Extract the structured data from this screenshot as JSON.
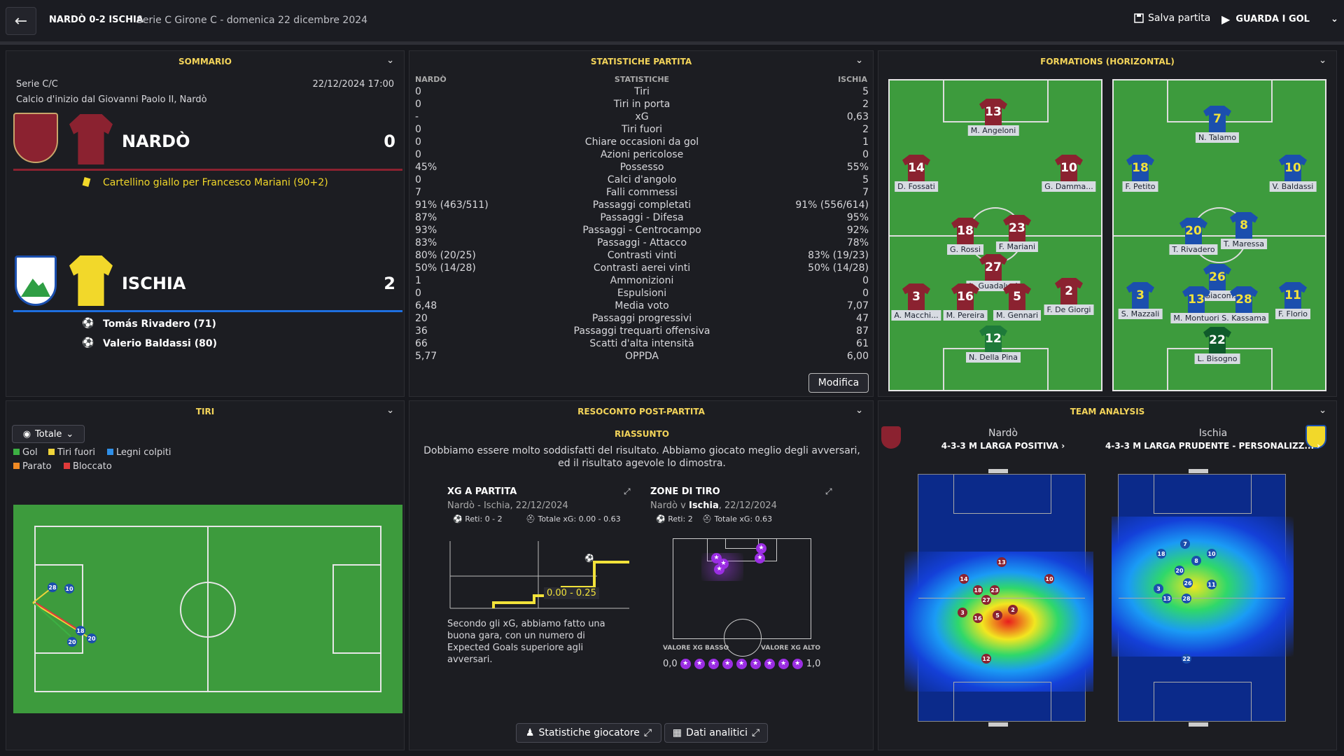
{
  "topbar": {
    "back_icon": "arrow-left-icon",
    "score_title": "NARDÒ 0-2 ISCHIA",
    "subtitle": "Serie C Girone C - domenica 22 dicembre 2024",
    "save_label": "Salva partita",
    "goals_label": "GUARDA I GOL"
  },
  "summary": {
    "header": "SOMMARIO",
    "competition": "Serie C/C",
    "datetime": "22/12/2024 17:00",
    "kickoff": "Calcio d'inizio dal Giovanni Paolo II, Nardò",
    "home": {
      "name": "NARDÒ",
      "score": "0",
      "color": "#8b2230",
      "events": [
        {
          "icon": "yellow-card-icon",
          "text": "Cartellino giallo per Francesco Mariani (90+2)"
        }
      ]
    },
    "away": {
      "name": "ISCHIA",
      "score": "2",
      "color": "#1b4fae",
      "events": [
        {
          "icon": "ball-icon",
          "text": "Tomás Rivadero (71)"
        },
        {
          "icon": "ball-icon",
          "text": "Valerio Baldassi (80)"
        }
      ]
    }
  },
  "stats": {
    "header": "STATISTICHE PARTITA",
    "col_home": "NARDÒ",
    "col_mid": "STATISTICHE",
    "col_away": "ISCHIA",
    "rows": [
      {
        "h": "0",
        "l": "Tiri",
        "a": "5"
      },
      {
        "h": "0",
        "l": "Tiri in porta",
        "a": "2"
      },
      {
        "h": "-",
        "l": "xG",
        "a": "0,63"
      },
      {
        "h": "0",
        "l": "Tiri fuori",
        "a": "2"
      },
      {
        "h": "0",
        "l": "Chiare occasioni da gol",
        "a": "1"
      },
      {
        "h": "0",
        "l": "Azioni pericolose",
        "a": "0"
      },
      {
        "h": "45%",
        "l": "Possesso",
        "a": "55%"
      },
      {
        "h": "0",
        "l": "Calci d'angolo",
        "a": "5"
      },
      {
        "h": "7",
        "l": "Falli commessi",
        "a": "7"
      },
      {
        "h": "91% (463/511)",
        "l": "Passaggi completati",
        "a": "91% (556/614)"
      },
      {
        "h": "87%",
        "l": "Passaggi - Difesa",
        "a": "95%"
      },
      {
        "h": "93%",
        "l": "Passaggi - Centrocampo",
        "a": "92%"
      },
      {
        "h": "83%",
        "l": "Passaggi - Attacco",
        "a": "78%"
      },
      {
        "h": "80% (20/25)",
        "l": "Contrasti vinti",
        "a": "83% (19/23)"
      },
      {
        "h": "50% (14/28)",
        "l": "Contrasti aerei vinti",
        "a": "50% (14/28)"
      },
      {
        "h": "1",
        "l": "Ammonizioni",
        "a": "0"
      },
      {
        "h": "0",
        "l": "Espulsioni",
        "a": "0"
      },
      {
        "h": "6,48",
        "l": "Media voto",
        "a": "7,07"
      },
      {
        "h": "20",
        "l": "Passaggi progressivi",
        "a": "47"
      },
      {
        "h": "36",
        "l": "Passaggi trequarti offensiva",
        "a": "87"
      },
      {
        "h": "66",
        "l": "Scatti d'alta intensità",
        "a": "61"
      },
      {
        "h": "5,77",
        "l": "OPPDA",
        "a": "6,00"
      }
    ],
    "edit_label": "Modifica"
  },
  "formations": {
    "header": "FORMATIONS (HORIZONTAL)",
    "home": [
      {
        "n": "13",
        "name": "M. Angeloni"
      },
      {
        "n": "14",
        "name": "D. Fossati"
      },
      {
        "n": "10",
        "name": "G. Damma..."
      },
      {
        "n": "18",
        "name": "G. Rossi"
      },
      {
        "n": "23",
        "name": "F. Mariani"
      },
      {
        "n": "27",
        "name": "L. Guadalupi"
      },
      {
        "n": "3",
        "name": "A. Macchi..."
      },
      {
        "n": "16",
        "name": "M. Pereira"
      },
      {
        "n": "5",
        "name": "M. Gennari"
      },
      {
        "n": "2",
        "name": "F. De Giorgi"
      },
      {
        "n": "12",
        "name": "N. Della Pina"
      }
    ],
    "away": [
      {
        "n": "7",
        "name": "N. Talamo"
      },
      {
        "n": "18",
        "name": "F. Petito"
      },
      {
        "n": "10",
        "name": "V. Baldassi"
      },
      {
        "n": "20",
        "name": "T. Rivadero"
      },
      {
        "n": "8",
        "name": "T. Maressa"
      },
      {
        "n": "26",
        "name": "D. Giacom..."
      },
      {
        "n": "3",
        "name": "S. Mazzali"
      },
      {
        "n": "13",
        "name": "M. Montuori"
      },
      {
        "n": "28",
        "name": "S. Kassama"
      },
      {
        "n": "11",
        "name": "F. Florio"
      },
      {
        "n": "22",
        "name": "L. Bisogno"
      }
    ]
  },
  "shots": {
    "header": "TIRI",
    "filter": "Totale",
    "legend": [
      {
        "label": "Gol",
        "color": "#3cb043"
      },
      {
        "label": "Tiri fuori",
        "color": "#f0d43a"
      },
      {
        "label": "Legni colpiti",
        "color": "#2f8fe8"
      },
      {
        "label": "Parato",
        "color": "#f08a24"
      },
      {
        "label": "Bloccato",
        "color": "#e03a3a"
      }
    ],
    "markers": [
      "28",
      "10",
      "18",
      "20",
      "20"
    ]
  },
  "report": {
    "header": "RESOCONTO POST-PARTITA",
    "summary_title": "RIASSUNTO",
    "summary_text": "Dobbiamo essere molto soddisfatti del risultato. Abbiamo giocato meglio degli avversari, ed il risultato agevole lo dimostra.",
    "xg": {
      "title": "XG A PARTITA",
      "subtitle": "Nardò - Ischia, 22/12/2024",
      "goals": "Reti: 0 - 2",
      "total_xg": "Totale xG: 0.00 - 0.63",
      "label": "0.00 - 0.25",
      "caption": "Secondo gli xG, abbiamo fatto una buona gara, con un numero di Expected Goals superiore agli avversari."
    },
    "zones": {
      "title": "ZONE DI TIRO",
      "subtitle_pre": "Nardò v ",
      "subtitle_team": "Ischia",
      "subtitle_post": ", 22/12/2024",
      "goals": "Reti: 2",
      "total_xg": "Totale xG: 0.63",
      "low_label": "VALORE XG BASSO",
      "high_label": "VALORE XG ALTO",
      "scale_min": "0,0",
      "scale_max": "1,0"
    },
    "player_stats_label": "Statistiche giocatore",
    "analytics_label": "Dati analitici"
  },
  "team_analysis": {
    "header": "TEAM ANALYSIS",
    "home": {
      "name": "Nardò",
      "formation": "4-3-3 M LARGA POSITIVA"
    },
    "away": {
      "name": "Ischia",
      "formation": "4-3-3 M LARGA PRUDENTE - PERSONALIZZ..."
    },
    "home_dots": [
      "13",
      "14",
      "10",
      "18",
      "23",
      "27",
      "3",
      "16",
      "5",
      "2",
      "12"
    ],
    "away_dots": [
      "7",
      "18",
      "10",
      "8",
      "20",
      "3",
      "26",
      "11",
      "13",
      "28",
      "22"
    ]
  }
}
